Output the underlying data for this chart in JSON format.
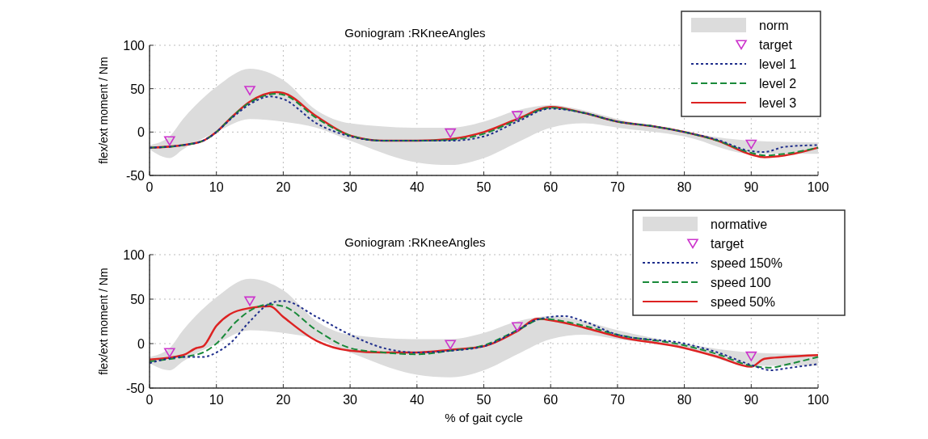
{
  "chart_data": [
    {
      "type": "line",
      "title": "Goniogram :RKneeAngles",
      "ylabel": "flex/ext moment / Nm",
      "xlim": [
        0,
        100
      ],
      "ylim": [
        -50,
        100
      ],
      "xticks": [
        0,
        10,
        20,
        30,
        40,
        50,
        60,
        70,
        80,
        90,
        100
      ],
      "yticks": [
        -50,
        0,
        50,
        100
      ],
      "grid": true,
      "legend": "top right",
      "series": [
        {
          "name": "norm",
          "type": "line",
          "color": "#dcdcdc",
          "x": [
            0,
            3,
            5,
            10,
            15,
            20,
            25,
            30,
            40,
            45,
            50,
            55,
            60,
            65,
            70,
            80,
            90,
            100
          ],
          "values": [
            null,
            null,
            null,
            null,
            null,
            null,
            null,
            null,
            null,
            null,
            null,
            null,
            null,
            null,
            null,
            null,
            null,
            null
          ],
          "lower": [
            -20,
            -30,
            -20,
            0,
            15,
            12,
            5,
            -10,
            -35,
            -38,
            -30,
            -12,
            5,
            10,
            5,
            -5,
            -25,
            -25
          ],
          "upper": [
            -15,
            -5,
            15,
            52,
            73,
            60,
            25,
            10,
            5,
            5,
            12,
            25,
            31,
            25,
            15,
            0,
            -10,
            -12
          ]
        },
        {
          "name": "target",
          "type": "scatter",
          "marker": "triangle",
          "color": "#cc33cc",
          "x": [
            3,
            15,
            45,
            55,
            90
          ],
          "values": [
            -10,
            48,
            -1,
            19,
            -14
          ]
        },
        {
          "name": "level 1",
          "type": "line",
          "line_style": "dotted",
          "color": "#1f2e8c",
          "x": [
            0,
            5,
            8,
            10,
            12,
            15,
            18,
            20,
            25,
            30,
            35,
            40,
            45,
            50,
            55,
            60,
            65,
            70,
            75,
            80,
            85,
            90,
            92,
            95,
            100
          ],
          "values": [
            -18,
            -15,
            -10,
            0,
            14,
            32,
            41,
            38,
            10,
            -5,
            -10,
            -10,
            -10,
            -5,
            12,
            27,
            22,
            12,
            7,
            0,
            -9,
            -22,
            -23,
            -17,
            -15
          ]
        },
        {
          "name": "level 2",
          "type": "line",
          "line_style": "dashed",
          "color": "#1a8a3a",
          "x": [
            0,
            5,
            8,
            10,
            12,
            15,
            19,
            20,
            25,
            30,
            35,
            40,
            45,
            50,
            55,
            60,
            65,
            70,
            75,
            80,
            85,
            90,
            92,
            95,
            100
          ],
          "values": [
            -18,
            -15,
            -10,
            0,
            15,
            34,
            44,
            43,
            16,
            -4,
            -10,
            -10,
            -9,
            -2,
            14,
            28,
            22,
            12,
            7,
            0,
            -10,
            -24,
            -27,
            -25,
            -18
          ]
        },
        {
          "name": "level 3",
          "line_style": "solid",
          "color": "#dd2222",
          "x": [
            0,
            5,
            8,
            10,
            12,
            15,
            19,
            20,
            25,
            30,
            35,
            40,
            45,
            50,
            55,
            60,
            65,
            70,
            75,
            80,
            85,
            90,
            92,
            95,
            100
          ],
          "values": [
            -18,
            -15,
            -10,
            0,
            15,
            35,
            46,
            45,
            18,
            -4,
            -10,
            -10,
            -8,
            0,
            15,
            29,
            22,
            12,
            7,
            0,
            -10,
            -26,
            -29,
            -27,
            -18
          ]
        }
      ]
    },
    {
      "type": "line",
      "title": "Goniogram :RKneeAngles",
      "xlabel": "% of gait cycle",
      "ylabel": "flex/ext moment / Nm",
      "xlim": [
        0,
        100
      ],
      "ylim": [
        -50,
        100
      ],
      "xticks": [
        0,
        10,
        20,
        30,
        40,
        50,
        60,
        70,
        80,
        90,
        100
      ],
      "yticks": [
        -50,
        0,
        50,
        100
      ],
      "grid": true,
      "legend": "top right",
      "series": [
        {
          "name": "normative",
          "type": "line",
          "color": "#dcdcdc",
          "x": [
            0,
            3,
            5,
            10,
            15,
            20,
            25,
            30,
            40,
            45,
            50,
            55,
            60,
            65,
            70,
            80,
            90,
            100
          ],
          "values": [
            null,
            null,
            null,
            null,
            null,
            null,
            null,
            null,
            null,
            null,
            null,
            null,
            null,
            null,
            null,
            null,
            null,
            null
          ],
          "lower": [
            -22,
            -30,
            -20,
            0,
            15,
            12,
            5,
            -10,
            -35,
            -38,
            -30,
            -12,
            5,
            10,
            5,
            -5,
            -25,
            -25
          ],
          "upper": [
            -15,
            -5,
            15,
            52,
            73,
            60,
            25,
            10,
            5,
            5,
            12,
            25,
            31,
            25,
            15,
            0,
            -10,
            -12
          ]
        },
        {
          "name": "target",
          "type": "scatter",
          "marker": "triangle",
          "color": "#cc33cc",
          "x": [
            3,
            15,
            45,
            55,
            90
          ],
          "values": [
            -10,
            48,
            -1,
            19,
            -14
          ]
        },
        {
          "name": "speed 150%",
          "type": "line",
          "line_style": "dotted",
          "color": "#1f2e8c",
          "x": [
            0,
            5,
            8,
            10,
            12,
            15,
            18,
            20,
            25,
            30,
            35,
            40,
            45,
            50,
            55,
            58,
            62,
            65,
            70,
            80,
            85,
            90,
            93,
            95,
            100
          ],
          "values": [
            -22,
            -15,
            -15,
            -10,
            0,
            25,
            45,
            48,
            30,
            10,
            -5,
            -10,
            -8,
            -3,
            15,
            27,
            31,
            25,
            10,
            0,
            -10,
            -24,
            -30,
            -28,
            -23
          ]
        },
        {
          "name": "speed 100",
          "type": "line",
          "line_style": "dashed",
          "color": "#1a8a3a",
          "x": [
            0,
            5,
            8,
            10,
            13,
            15,
            18,
            20,
            25,
            30,
            35,
            40,
            45,
            50,
            55,
            59,
            62,
            65,
            70,
            80,
            85,
            90,
            93,
            95,
            100
          ],
          "values": [
            -20,
            -15,
            -10,
            0,
            25,
            37,
            44,
            42,
            15,
            -5,
            -10,
            -12,
            -8,
            -2,
            15,
            28,
            25,
            20,
            10,
            -2,
            -12,
            -25,
            -27,
            -24,
            -15
          ]
        },
        {
          "name": "speed 50%",
          "line_style": "solid",
          "color": "#dd2222",
          "x": [
            0,
            5,
            7,
            8,
            10,
            12,
            15,
            18,
            20,
            25,
            30,
            35,
            40,
            45,
            50,
            55,
            58,
            61,
            65,
            70,
            80,
            85,
            90,
            92,
            95,
            100
          ],
          "values": [
            -18,
            -13,
            -5,
            -3,
            20,
            33,
            40,
            42,
            30,
            3,
            -8,
            -10,
            -10,
            -7,
            -3,
            14,
            28,
            25,
            18,
            8,
            -5,
            -15,
            -26,
            -17,
            -15,
            -13
          ]
        }
      ]
    }
  ]
}
